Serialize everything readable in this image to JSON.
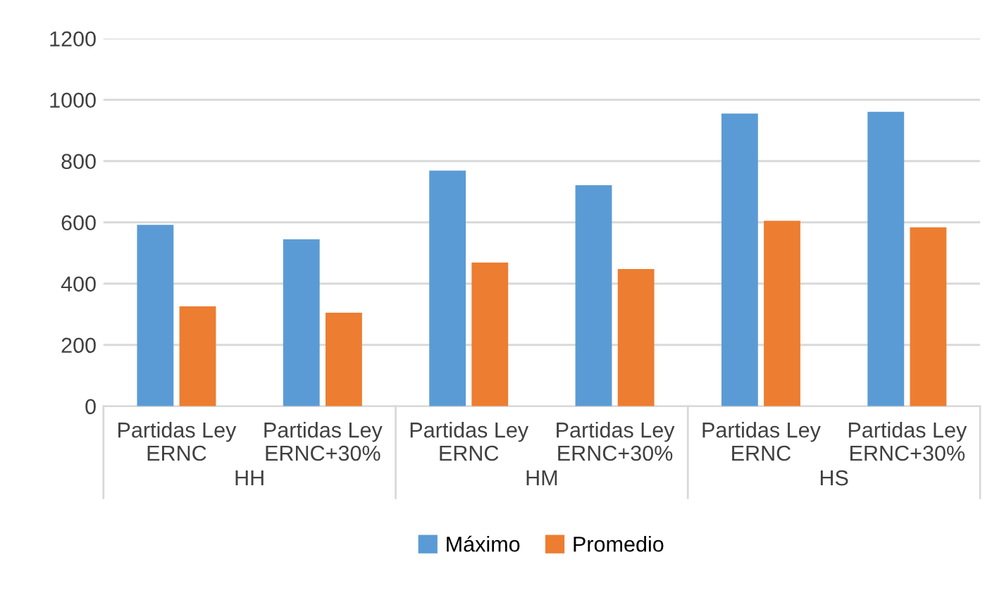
{
  "chart_data": {
    "type": "bar",
    "categories": [
      "Partidas Ley\nERNC",
      "Partidas Ley\nERNC+30%",
      "Partidas Ley\nERNC",
      "Partidas Ley\nERNC+30%",
      "Partidas Ley\nERNC",
      "Partidas Ley\nERNC+30%"
    ],
    "series": [
      {
        "name": "Máximo",
        "color": "#5b9bd5",
        "values": [
          592,
          545,
          769,
          721,
          955,
          961
        ]
      },
      {
        "name": "Promedio",
        "color": "#ed7d31",
        "values": [
          326,
          305,
          469,
          448,
          605,
          584
        ]
      }
    ],
    "annotations": [
      "HH",
      "HM",
      "HS"
    ],
    "ylim": [
      0,
      1200
    ],
    "yticks": [
      0,
      200,
      400,
      600,
      800,
      1000,
      1200
    ],
    "grid": "y",
    "legend": "bottom"
  }
}
